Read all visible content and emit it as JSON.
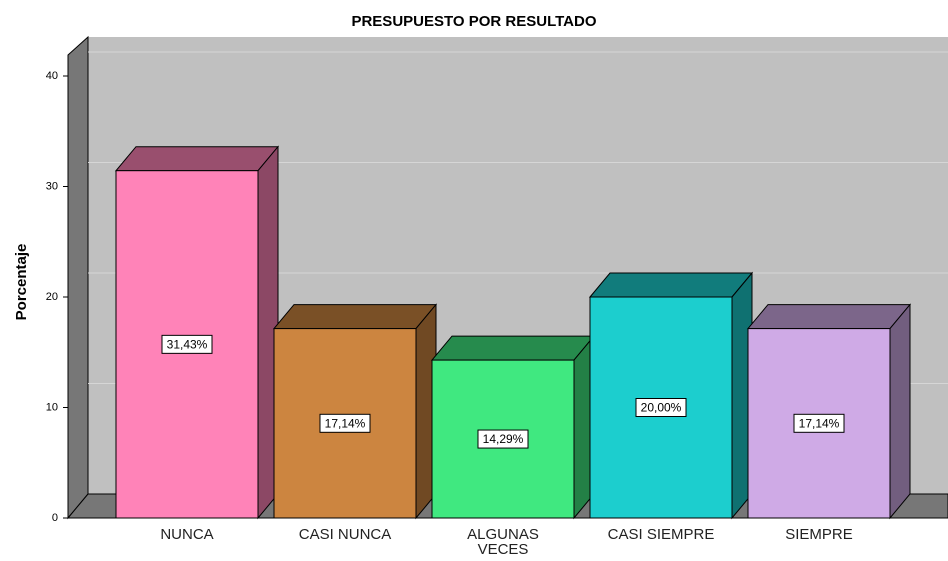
{
  "chart_data": {
    "type": "bar3d",
    "title": "PRESUPUESTO POR RESULTADO",
    "y_label": "Porcentaje",
    "categories": [
      "NUNCA",
      "CASI NUNCA",
      "ALGUNAS VECES",
      "CASI SIEMPRE",
      "SIEMPRE"
    ],
    "values": [
      31.43,
      17.14,
      14.29,
      20.0,
      17.14
    ],
    "value_labels": [
      "31,43%",
      "17,14%",
      "14,29%",
      "20,00%",
      "17,14%"
    ],
    "colors": [
      "#ff83b8",
      "#cc8540",
      "#40e880",
      "#1ccece",
      "#cfaae6"
    ],
    "ylim": [
      0,
      40
    ],
    "yticks": [
      0,
      10,
      20,
      30,
      40
    ],
    "grid": true
  }
}
